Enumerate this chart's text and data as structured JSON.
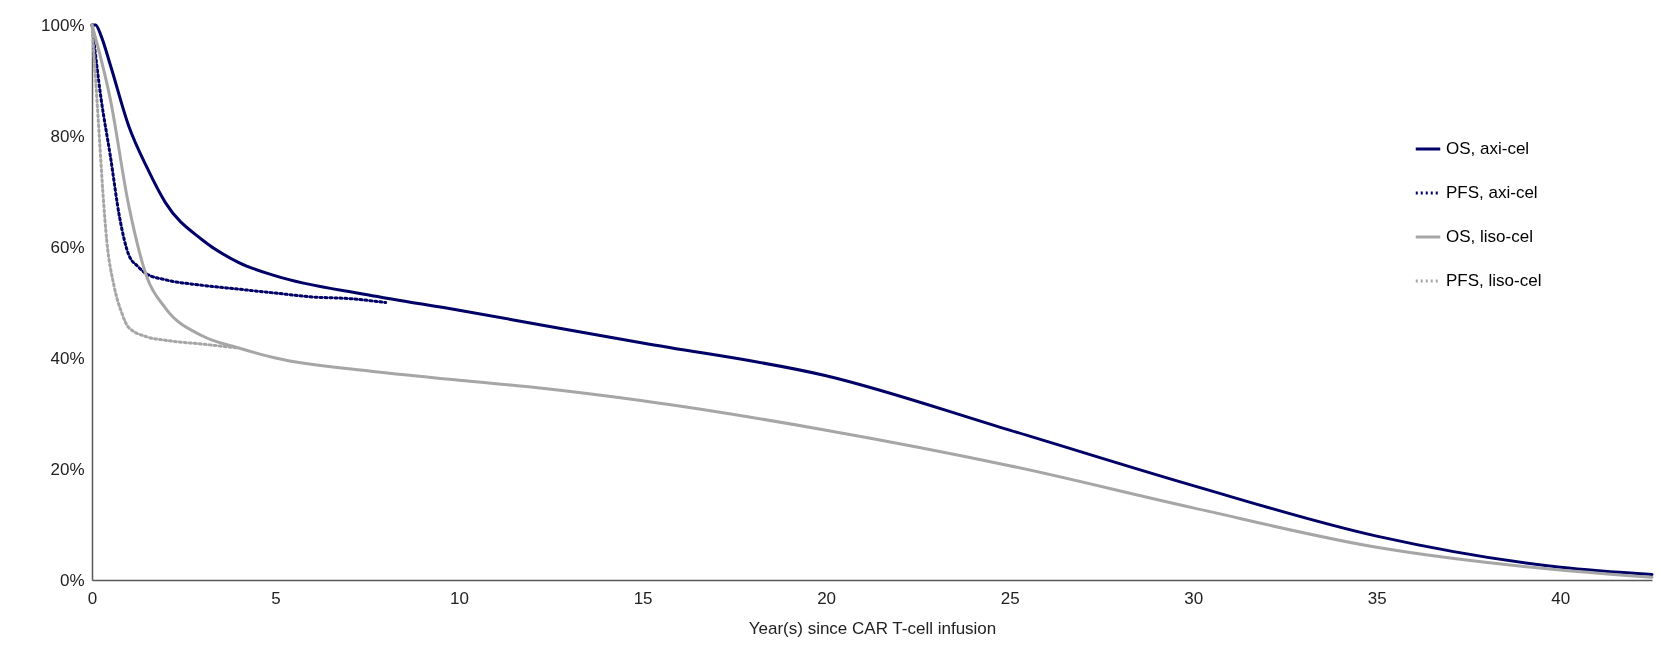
{
  "chart_data": {
    "type": "line",
    "xlabel": "Year(s) since CAR T-cell infusion",
    "xlim": [
      0,
      42.5
    ],
    "xticks": [
      0,
      5,
      10,
      15,
      20,
      25,
      30,
      35,
      40
    ],
    "ylim": [
      0,
      100
    ],
    "yticks": [
      {
        "value": 0,
        "label": "0%"
      },
      {
        "value": 20,
        "label": "20%"
      },
      {
        "value": 40,
        "label": "40%"
      },
      {
        "value": 60,
        "label": "60%"
      },
      {
        "value": 80,
        "label": "80%"
      },
      {
        "value": 100,
        "label": "100%"
      }
    ],
    "grid": false,
    "legend": "top right",
    "marker": "none",
    "series": [
      {
        "name": "OS, axi-cel",
        "color": "#000066",
        "line_style": "solid",
        "x": [
          0,
          0.1,
          0.25,
          0.5,
          1,
          1.5,
          2,
          3,
          4,
          5,
          7.5,
          10,
          12.2,
          15,
          20,
          25,
          30,
          35,
          40,
          42.5
        ],
        "values": [
          100,
          100,
          98,
          92.8,
          81.8,
          74.3,
          68,
          61.3,
          57.2,
          54.8,
          51.4,
          48.6,
          46,
          42.7,
          36.8,
          27,
          17,
          7.9,
          2.3,
          1
        ]
      },
      {
        "name": "PFS, axi-cel",
        "color": "#000066",
        "line_style": "dotted",
        "x": [
          0,
          0.25,
          0.5,
          0.75,
          1,
          1.25,
          1.5,
          2,
          3,
          4,
          5,
          6,
          7,
          8
        ],
        "values": [
          100,
          86.6,
          76.4,
          65.4,
          58.6,
          56.5,
          55.1,
          54.1,
          53.1,
          52.4,
          51.7,
          51,
          50.7,
          50
        ]
      },
      {
        "name": "OS, liso-cel",
        "color": "#a6a6a6",
        "line_style": "solid",
        "x": [
          0,
          0.5,
          1,
          1.5,
          2,
          3,
          4,
          5,
          7.5,
          10,
          12.2,
          15,
          20,
          25,
          30,
          35,
          40,
          42.5
        ],
        "values": [
          100,
          86.6,
          67.5,
          54.5,
          49,
          44,
          41.8,
          40,
          37.7,
          36,
          34.6,
          32.3,
          27,
          20.6,
          13,
          5.9,
          1.8,
          0.5
        ]
      },
      {
        "name": "PFS, liso-cel",
        "color": "#a6a6a6",
        "line_style": "dotted",
        "x": [
          0,
          0.1,
          0.2,
          0.3,
          0.4,
          0.6,
          0.8,
          1,
          1.5,
          2,
          3,
          4
        ],
        "values": [
          100,
          90,
          79.8,
          69.5,
          61.3,
          53,
          48.3,
          45.5,
          43.8,
          43.2,
          42.5,
          41.8
        ]
      }
    ]
  }
}
